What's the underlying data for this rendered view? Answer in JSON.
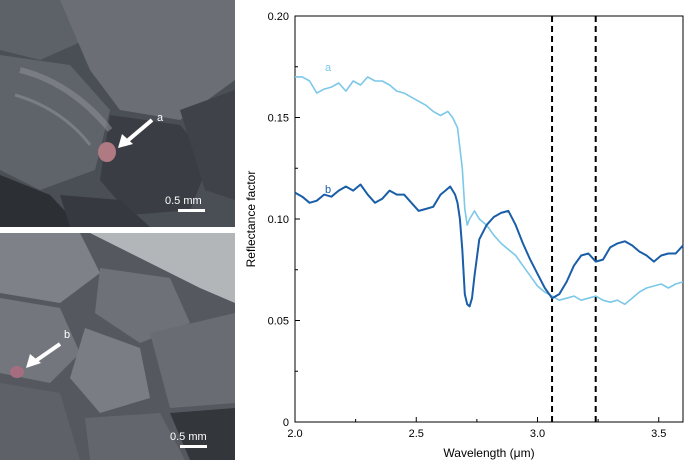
{
  "panels": {
    "photo_a": {
      "label": "a",
      "scale_bar": "0.5 mm",
      "colors": {
        "background": "#4a4e55",
        "rock_light": "#6b6f75",
        "rock_dark": "#2c2f34",
        "grain": "#b07a82",
        "arrow": "#ffffff"
      }
    },
    "photo_b": {
      "label": "b",
      "scale_bar": "0.5 mm",
      "colors": {
        "background": "#55595f",
        "rock_light": "#7e8188",
        "rock_dark": "#33363b",
        "grain": "#a46e80",
        "arrow": "#ffffff"
      }
    }
  },
  "chart_data": {
    "type": "line",
    "title": "",
    "xlabel": "Wavelength (μm)",
    "ylabel": "Reflectance factor",
    "xlim": [
      2.0,
      3.6
    ],
    "ylim": [
      0,
      0.2
    ],
    "xticks": [
      2.0,
      2.5,
      3.0,
      3.5
    ],
    "xtick_labels": [
      "2.0",
      "2.5",
      "3.0",
      "3.5"
    ],
    "yticks": [
      0,
      0.05,
      0.1,
      0.15,
      0.2
    ],
    "ytick_labels": [
      "0",
      "0.05",
      "0.10",
      "0.15",
      "0.20"
    ],
    "grid": false,
    "vlines": [
      3.06,
      3.24
    ],
    "series": [
      {
        "name": "a",
        "color": "#7cc8e8",
        "x": [
          2.0,
          2.03,
          2.06,
          2.09,
          2.12,
          2.15,
          2.18,
          2.21,
          2.24,
          2.27,
          2.3,
          2.33,
          2.36,
          2.39,
          2.42,
          2.45,
          2.48,
          2.51,
          2.54,
          2.57,
          2.6,
          2.63,
          2.65,
          2.67,
          2.69,
          2.7,
          2.71,
          2.72,
          2.74,
          2.76,
          2.79,
          2.82,
          2.85,
          2.88,
          2.91,
          2.94,
          2.97,
          3.0,
          3.03,
          3.06,
          3.09,
          3.12,
          3.15,
          3.18,
          3.21,
          3.24,
          3.27,
          3.3,
          3.33,
          3.36,
          3.39,
          3.42,
          3.45,
          3.48,
          3.51,
          3.54,
          3.57,
          3.6
        ],
        "y": [
          0.17,
          0.17,
          0.168,
          0.162,
          0.164,
          0.165,
          0.167,
          0.163,
          0.168,
          0.166,
          0.17,
          0.168,
          0.168,
          0.166,
          0.163,
          0.162,
          0.16,
          0.158,
          0.156,
          0.153,
          0.151,
          0.153,
          0.15,
          0.145,
          0.125,
          0.105,
          0.097,
          0.1,
          0.104,
          0.1,
          0.097,
          0.092,
          0.088,
          0.085,
          0.082,
          0.077,
          0.072,
          0.067,
          0.064,
          0.062,
          0.06,
          0.061,
          0.062,
          0.06,
          0.061,
          0.062,
          0.06,
          0.059,
          0.06,
          0.058,
          0.061,
          0.064,
          0.066,
          0.067,
          0.068,
          0.066,
          0.068,
          0.069
        ]
      },
      {
        "name": "b",
        "color": "#1a5ea8",
        "x": [
          2.0,
          2.03,
          2.06,
          2.09,
          2.12,
          2.15,
          2.18,
          2.21,
          2.24,
          2.27,
          2.3,
          2.33,
          2.36,
          2.39,
          2.42,
          2.45,
          2.48,
          2.51,
          2.54,
          2.57,
          2.6,
          2.62,
          2.64,
          2.66,
          2.67,
          2.68,
          2.69,
          2.7,
          2.71,
          2.72,
          2.73,
          2.74,
          2.76,
          2.79,
          2.82,
          2.85,
          2.88,
          2.91,
          2.94,
          2.97,
          3.0,
          3.03,
          3.06,
          3.09,
          3.12,
          3.15,
          3.18,
          3.21,
          3.24,
          3.27,
          3.3,
          3.33,
          3.36,
          3.39,
          3.42,
          3.45,
          3.48,
          3.51,
          3.54,
          3.57,
          3.6
        ],
        "y": [
          0.113,
          0.111,
          0.108,
          0.109,
          0.112,
          0.111,
          0.114,
          0.116,
          0.114,
          0.117,
          0.112,
          0.108,
          0.11,
          0.114,
          0.112,
          0.112,
          0.108,
          0.104,
          0.105,
          0.106,
          0.112,
          0.114,
          0.116,
          0.112,
          0.108,
          0.1,
          0.085,
          0.063,
          0.058,
          0.057,
          0.061,
          0.072,
          0.09,
          0.097,
          0.101,
          0.103,
          0.104,
          0.097,
          0.088,
          0.08,
          0.073,
          0.066,
          0.061,
          0.063,
          0.069,
          0.077,
          0.082,
          0.083,
          0.079,
          0.08,
          0.086,
          0.088,
          0.089,
          0.087,
          0.084,
          0.082,
          0.079,
          0.082,
          0.083,
          0.083,
          0.087
        ]
      }
    ]
  }
}
